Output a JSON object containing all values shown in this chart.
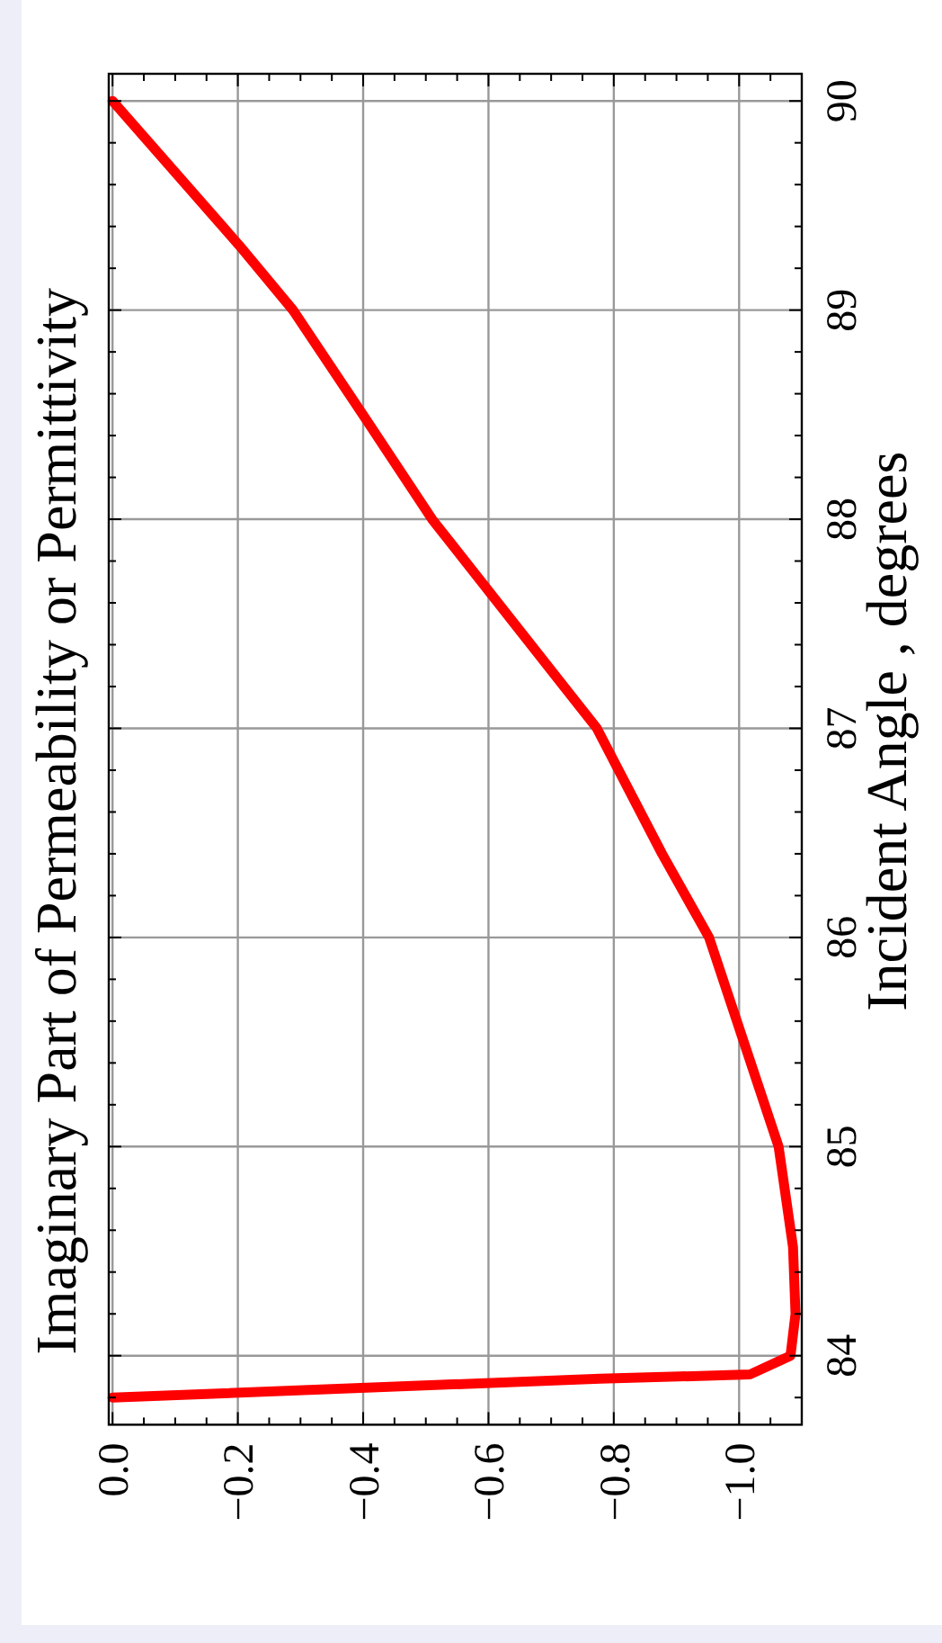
{
  "chart_data": {
    "type": "line",
    "title": "Imaginary  Part  of  Permeability  or  Permittivity",
    "ylabel": "Incident  Angle ,  degrees",
    "series": [
      {
        "color": "#ff0000",
        "x": [
          0,
          -0.778,
          -1.017,
          -1.082,
          -1.09,
          -1.086,
          -1.063,
          -0.952,
          -0.877,
          -0.773,
          -0.51,
          -0.404,
          -0.288,
          -0.202,
          0
        ],
        "values": [
          83.8,
          83.89,
          83.91,
          84,
          84.2,
          84.52,
          85,
          86,
          86.4,
          87,
          88,
          88.48,
          89,
          89.31,
          90
        ]
      }
    ],
    "ylim": [
      83.67,
      90.13
    ],
    "xlim": [
      0.006,
      -1.1
    ],
    "yticks": [
      {
        "value": 83.8,
        "label": null
      },
      84,
      {
        "value": 84.2,
        "label": null
      },
      {
        "value": 84.4,
        "label": null
      },
      {
        "value": 84.6,
        "label": null
      },
      {
        "value": 84.8,
        "label": null
      },
      85,
      {
        "value": 85.2,
        "label": null
      },
      {
        "value": 85.4,
        "label": null
      },
      {
        "value": 85.6,
        "label": null
      },
      {
        "value": 85.8,
        "label": null
      },
      86,
      {
        "value": 86.2,
        "label": null
      },
      {
        "value": 86.4,
        "label": null
      },
      {
        "value": 86.6,
        "label": null
      },
      {
        "value": 86.8,
        "label": null
      },
      87,
      {
        "value": 87.2,
        "label": null
      },
      {
        "value": 87.4,
        "label": null
      },
      {
        "value": 87.6,
        "label": null
      },
      {
        "value": 87.8,
        "label": null
      },
      88,
      {
        "value": 88.2,
        "label": null
      },
      {
        "value": 88.4,
        "label": null
      },
      {
        "value": 88.6,
        "label": null
      },
      {
        "value": 88.8,
        "label": null
      },
      89,
      {
        "value": 89.2,
        "label": null
      },
      {
        "value": 89.4,
        "label": null
      },
      {
        "value": 89.6,
        "label": null
      },
      {
        "value": 89.8,
        "label": null
      },
      90
    ],
    "xticks": [
      {
        "value": 0,
        "label": "0.0"
      },
      {
        "value": -0.05,
        "label": null
      },
      {
        "value": -0.1,
        "label": null
      },
      {
        "value": -0.15,
        "label": null
      },
      {
        "value": -0.2,
        "label": "−0.2"
      },
      {
        "value": -0.25,
        "label": null
      },
      {
        "value": -0.3,
        "label": null
      },
      {
        "value": -0.35,
        "label": null
      },
      {
        "value": -0.4,
        "label": "−0.4"
      },
      {
        "value": -0.45,
        "label": null
      },
      {
        "value": -0.5,
        "label": null
      },
      {
        "value": -0.55,
        "label": null
      },
      {
        "value": -0.6,
        "label": "−0.6"
      },
      {
        "value": -0.65,
        "label": null
      },
      {
        "value": -0.7,
        "label": null
      },
      {
        "value": -0.75,
        "label": null
      },
      {
        "value": -0.8,
        "label": "−0.8"
      },
      {
        "value": -0.85,
        "label": null
      },
      {
        "value": -0.9,
        "label": null
      },
      {
        "value": -0.95,
        "label": null
      },
      {
        "value": -1.0,
        "label": "−1.0"
      },
      {
        "value": -1.05,
        "label": null
      }
    ],
    "grid": true,
    "line_style": "solid",
    "marker": "none"
  }
}
